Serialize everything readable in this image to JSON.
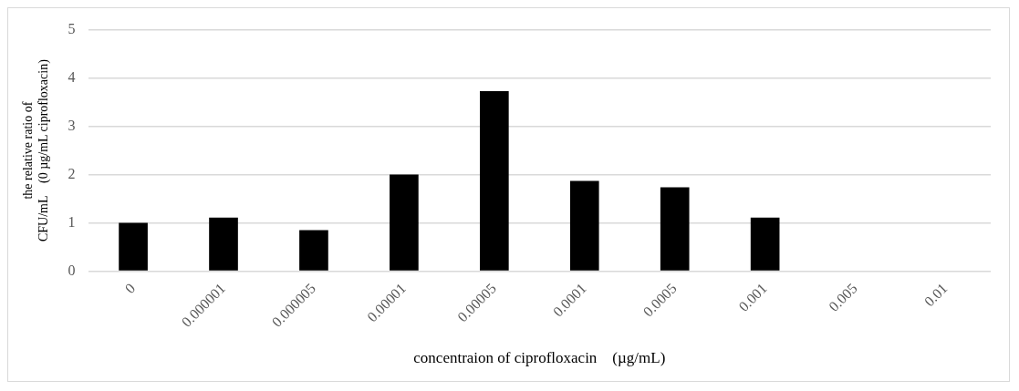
{
  "chart_data": {
    "type": "bar",
    "xlabel": "concentraion of ciprofloxacin　(µg/mL)",
    "ylabel": "the relative ratio of CFU/mL　(0 µg/mL ciprofloxacin)",
    "categories": [
      "0",
      "0.000001",
      "0.000005",
      "0.00001",
      "0.00005",
      "0.0001",
      "0.0005",
      "0.001",
      "0.005",
      "0.01"
    ],
    "values": [
      1.0,
      1.11,
      0.85,
      2.0,
      3.73,
      1.87,
      1.74,
      1.11,
      0,
      0
    ],
    "color": "#000000",
    "ylim": [
      0,
      5
    ],
    "yticks": [
      0,
      1,
      2,
      3,
      4,
      5
    ],
    "grid": "y",
    "legend": false
  }
}
